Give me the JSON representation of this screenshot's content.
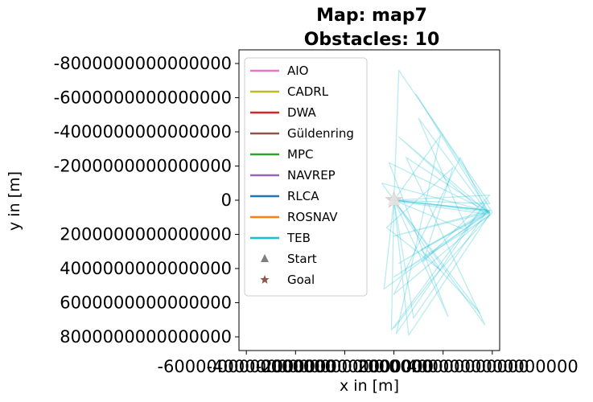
{
  "chart_data": {
    "type": "line",
    "title_line1": "Map: map7",
    "title_line2": "Obstacles: 10",
    "xlabel": "x in [m]",
    "ylabel": "y in [m]",
    "y_inverted": true,
    "xlim": [
      -6300000000000000,
      4300000000000000
    ],
    "ylim": [
      8800000000000000,
      -8800000000000000
    ],
    "x_ticks": [
      {
        "value": -6000000000000000,
        "label": "-6000000000000000"
      },
      {
        "value": -4000000000000000,
        "label": "-4000000000000000"
      },
      {
        "value": -2000000000000000,
        "label": "-2000000000000000"
      },
      {
        "value": 0,
        "label": "0"
      },
      {
        "value": 2000000000000000,
        "label": "2000000000000000"
      },
      {
        "value": 4000000000000000,
        "label": "4000000000000000"
      }
    ],
    "y_ticks": [
      {
        "value": -8000000000000000,
        "label": "-8000000000000000"
      },
      {
        "value": -6000000000000000,
        "label": "-6000000000000000"
      },
      {
        "value": -4000000000000000,
        "label": "-4000000000000000"
      },
      {
        "value": -2000000000000000,
        "label": "-2000000000000000"
      },
      {
        "value": 0,
        "label": "0"
      },
      {
        "value": 2000000000000000,
        "label": "2000000000000000"
      },
      {
        "value": 4000000000000000,
        "label": "4000000000000000"
      },
      {
        "value": 6000000000000000,
        "label": "6000000000000000"
      },
      {
        "value": 8000000000000000,
        "label": "8000000000000000"
      }
    ],
    "legend": {
      "placement": "upper-left",
      "entries": [
        {
          "name": "AIO",
          "color": "#e377c2",
          "marker": "line"
        },
        {
          "name": "CADRL",
          "color": "#bcbd22",
          "marker": "line"
        },
        {
          "name": "DWA",
          "color": "#d62728",
          "marker": "line"
        },
        {
          "name": "Güldenring",
          "color": "#8c564b",
          "marker": "line"
        },
        {
          "name": "MPC",
          "color": "#2ca02c",
          "marker": "line"
        },
        {
          "name": "NAVREP",
          "color": "#9467bd",
          "marker": "line"
        },
        {
          "name": "RLCA",
          "color": "#1f77b4",
          "marker": "line"
        },
        {
          "name": "ROSNAV",
          "color": "#ff7f0e",
          "marker": "line"
        },
        {
          "name": "TEB",
          "color": "#17becf",
          "marker": "line"
        },
        {
          "name": "Start",
          "color": "#7f7f7f",
          "marker": "triangle"
        },
        {
          "name": "Goal",
          "color": "#8c564b",
          "marker": "star"
        }
      ]
    },
    "start": {
      "x": 0,
      "y": 0
    },
    "goal": {
      "x": 0,
      "y": 0
    },
    "series": [
      {
        "name": "TEB",
        "color": "#17becf",
        "alpha": 0.3,
        "x": [
          0,
          200000000000000,
          3900000000000000,
          0,
          -100000000000000,
          3800000000000000,
          100000000000000,
          1900000000000000,
          0
        ],
        "y": [
          0,
          -7600000000000000,
          200000000000000,
          0,
          7600000000000000,
          0,
          7800000000000000,
          -3800000000000000,
          0
        ]
      },
      {
        "name": "TEB",
        "color": "#17becf",
        "alpha": 0.3,
        "x": [
          0,
          3900000000000000,
          -500000000000000,
          3700000000000000,
          500000000000000,
          3800000000000000,
          0
        ],
        "y": [
          0,
          700000000000000,
          -1000000000000000,
          7300000000000000,
          -2500000000000000,
          600000000000000,
          0
        ]
      },
      {
        "name": "TEB",
        "color": "#17becf",
        "alpha": 0.3,
        "x": [
          0,
          3000000000000000,
          1000000000000000,
          3900000000000000,
          0,
          3900000000000000,
          -200000000000000,
          2200000000000000,
          0
        ],
        "y": [
          0,
          1800000000000000,
          -4800000000000000,
          900000000000000,
          4500000000000000,
          700000000000000,
          -2200000000000000,
          6800000000000000,
          0
        ]
      },
      {
        "name": "TEB",
        "color": "#17becf",
        "alpha": 0.3,
        "x": [
          0,
          1900000000000000,
          -300000000000000,
          2400000000000000,
          1200000000000000,
          3900000000000000,
          0
        ],
        "y": [
          0,
          4100000000000000,
          1600000000000000,
          -1900000000000000,
          3600000000000000,
          -300000000000000,
          0
        ]
      },
      {
        "name": "TEB",
        "color": "#17becf",
        "alpha": 0.3,
        "x": [
          -200000000000000,
          3700000000000000,
          200000000000000,
          3900000000000000,
          900000000000000,
          4000000000000000,
          1500000000000000,
          0
        ],
        "y": [
          0,
          800000000000000,
          -3700000000000000,
          800000000000000,
          -6200000000000000,
          700000000000000,
          4700000000000000,
          7500000000000000
        ]
      },
      {
        "name": "TEB",
        "color": "#17becf",
        "alpha": 0.3,
        "x": [
          0,
          600000000000000,
          3900000000000000,
          0,
          2700000000000000,
          3800000000000000,
          -400000000000000,
          0
        ],
        "y": [
          0,
          7900000000000000,
          800000000000000,
          5500000000000000,
          -2500000000000000,
          700000000000000,
          5200000000000000,
          0
        ]
      },
      {
        "name": "TEB",
        "color": "#17becf",
        "alpha": 0.3,
        "x": [
          0,
          800000000000000,
          3800000000000000,
          200000000000000,
          3900000000000000,
          0
        ],
        "y": [
          0,
          6900000000000000,
          600000000000000,
          3700000000000000,
          600000000000000,
          0
        ]
      },
      {
        "name": "TEB",
        "color": "#17becf",
        "alpha": 0.3,
        "x": [
          0,
          3500000000000000,
          1100000000000000,
          3900000000000000,
          0,
          3900000000000000,
          0
        ],
        "y": [
          0,
          6600000000000000,
          2900000000000000,
          700000000000000,
          2100000000000000,
          600000000000000,
          0
        ]
      }
    ]
  }
}
